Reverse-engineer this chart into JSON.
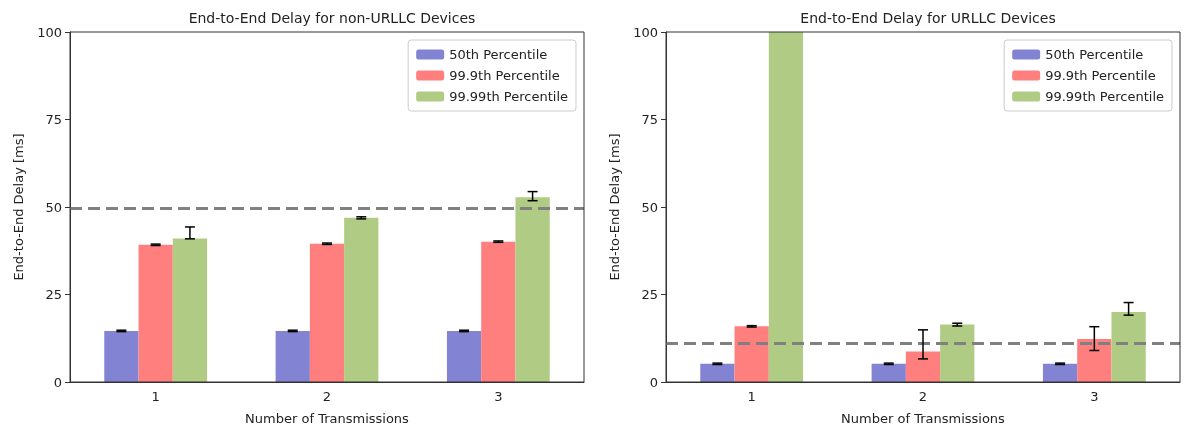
{
  "chart_data": [
    {
      "type": "bar",
      "title": "End-to-End Delay for non-URLLC Devices",
      "xlabel": "Number of Transmissions",
      "ylabel": "End-to-End Delay [ms]",
      "categories": [
        "1",
        "2",
        "3"
      ],
      "ylim": [
        0,
        100
      ],
      "yticks": [
        0,
        25,
        50,
        75,
        100
      ],
      "grid": false,
      "legend": "top right",
      "series": [
        {
          "name": "50th Percentile",
          "color": "#8383d4",
          "values": [
            14.6,
            14.6,
            14.6
          ],
          "errors": [
            0.2,
            0.2,
            0.2
          ]
        },
        {
          "name": "99.9th Percentile",
          "color": "#ff7f7f",
          "values": [
            39.2,
            39.5,
            40.1
          ],
          "errors": [
            0.2,
            0.2,
            0.2
          ]
        },
        {
          "name": "99.99th Percentile",
          "color": "#b0cb84",
          "values": [
            41.0,
            46.9,
            52.8
          ],
          "errors": [
            [
              40.9,
              44.3
            ],
            0.3,
            [
              51.8,
              54.4
            ]
          ]
        }
      ],
      "ref_lines": [
        {
          "axis": "y",
          "value": 49.7,
          "color": "#808080",
          "line_style": "dashed"
        }
      ]
    },
    {
      "type": "bar",
      "title": "End-to-End Delay for URLLC Devices",
      "xlabel": "Number of Transmissions",
      "ylabel": "End-to-End Delay [ms]",
      "categories": [
        "1",
        "2",
        "3"
      ],
      "ylim": [
        0,
        100
      ],
      "yticks": [
        0,
        25,
        50,
        75,
        100
      ],
      "grid": false,
      "legend": "top right",
      "series": [
        {
          "name": "50th Percentile",
          "color": "#8383d4",
          "values": [
            5.2,
            5.2,
            5.2
          ],
          "errors": [
            0.2,
            0.2,
            0.2
          ]
        },
        {
          "name": "99.9th Percentile",
          "color": "#ff7f7f",
          "values": [
            15.9,
            8.7,
            12.3
          ],
          "errors": [
            0.2,
            [
              6.6,
              14.9
            ],
            [
              9.0,
              15.8
            ]
          ]
        },
        {
          "name": "99.99th Percentile",
          "color": "#b0cb84",
          "values": [
            100,
            16.4,
            20.0
          ],
          "errors": [
            null,
            0.4,
            [
              19.1,
              22.7
            ]
          ]
        }
      ],
      "ref_lines": [
        {
          "axis": "y",
          "value": 11.0,
          "color": "#808080",
          "line_style": "dashed"
        }
      ]
    }
  ]
}
